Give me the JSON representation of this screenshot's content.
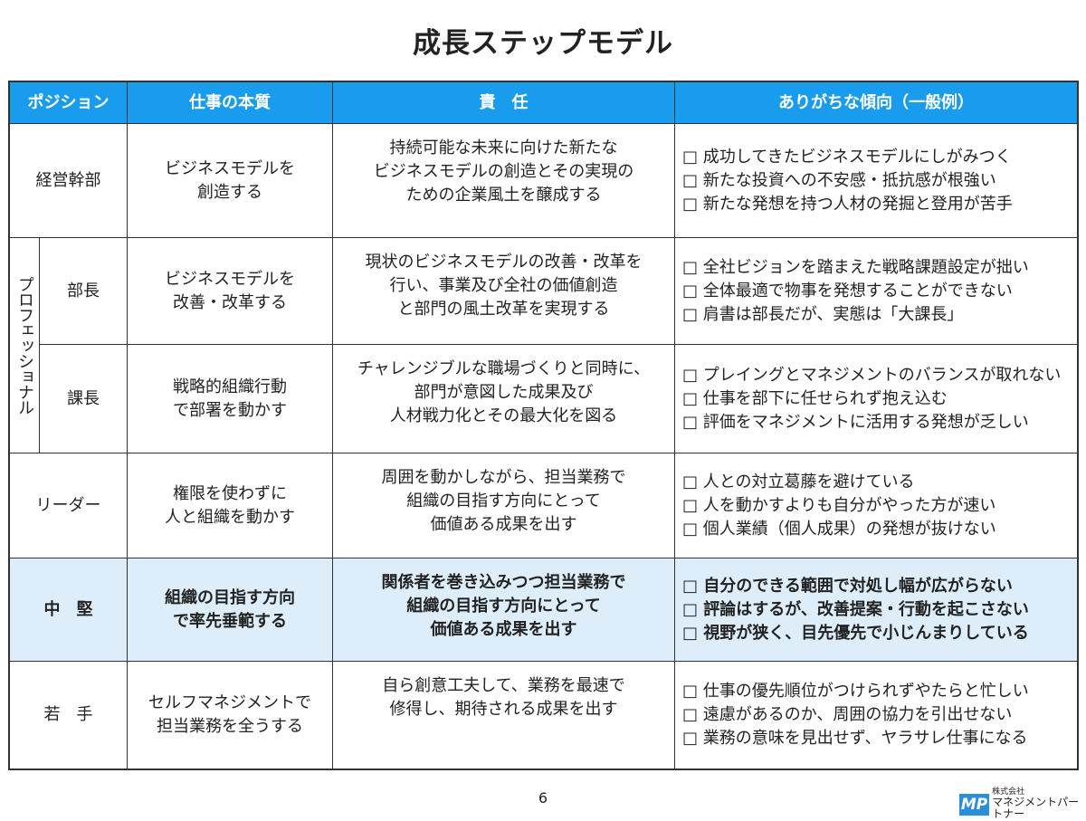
{
  "title": "成長ステップモデル",
  "headers": [
    "ポジション",
    "仕事の本質",
    "責　任",
    "ありがちな傾向（一般例）"
  ],
  "professional_label": "プロフェッショナル",
  "rows": [
    {
      "position": "経営幹部",
      "essence": [
        "ビジネスモデルを",
        "創造する"
      ],
      "responsibility": [
        "持続可能な未来に向けた新たな",
        "ビジネスモデルの創造とその実現の",
        "ための企業風土を醸成する"
      ],
      "tendencies": [
        "□ 成功してきたビジネスモデルにしがみつく",
        "□ 新たな投資への不安感・抵抗感が根強い",
        "□ 新たな発想を持つ人材の発掘と登用が苦手"
      ]
    },
    {
      "position": "部長",
      "essence": [
        "ビジネスモデルを",
        "改善・改革する"
      ],
      "responsibility": [
        "現状のビジネスモデルの改善・改革を",
        "行い、事業及び全社の価値創造",
        "と部門の風土改革を実現する"
      ],
      "tendencies": [
        "□ 全社ビジョンを踏まえた戦略課題設定が拙い",
        "□ 全体最適で物事を発想することができない",
        "□ 肩書は部長だが、実態は「大課長」"
      ]
    },
    {
      "position": "課長",
      "essence": [
        "戦略的組織行動",
        "で部署を動かす"
      ],
      "responsibility": [
        "チャレンジブルな職場づくりと同時に、",
        "部門が意図した成果及び",
        "人材戦力化とその最大化を図る"
      ],
      "tendencies": [
        "□ プレイングとマネジメントのバランスが取れない",
        "□ 仕事を部下に任せられず抱え込む",
        "□ 評価をマネジメントに活用する発想が乏しい"
      ]
    },
    {
      "position": "リーダー",
      "essence": [
        "権限を使わずに",
        "人と組織を動かす"
      ],
      "responsibility": [
        "周囲を動かしながら、担当業務で",
        "組織の目指す方向にとって",
        "価値ある成果を出す"
      ],
      "tendencies": [
        "□ 人との対立葛藤を避けている",
        "□ 人を動かすよりも自分がやった方が速い",
        "□ 個人業績（個人成果）の発想が抜けない"
      ]
    },
    {
      "position": "中　堅",
      "essence": [
        "組織の目指す方向",
        "で率先垂範する"
      ],
      "responsibility": [
        "関係者を巻き込みつつ担当業務で",
        "組織の目指す方向にとって",
        "価値ある成果を出す"
      ],
      "tendencies": [
        "□ 自分のできる範囲で対処し幅が広がらない",
        "□ 評論はするが、改善提案・行動を起こさない",
        "□ 視野が狭く、目先優先で小じんまりしている"
      ]
    },
    {
      "position": "若　手",
      "essence": [
        "セルフマネジメントで",
        "担当業務を全うする"
      ],
      "responsibility": [
        "自ら創意工夫して、業務を最速で",
        "修得し、期待される成果を出す"
      ],
      "tendencies": [
        "□ 仕事の優先順位がつけられずやたらと忙しい",
        "□ 遠慮があるのか、周囲の協力を引出せない",
        "□ 業務の意味を見出せず、ヤラサレ仕事になる"
      ]
    }
  ],
  "page_number": "6",
  "logo": {
    "mark": "MP",
    "company_type": "株式会社",
    "company_name": "マネジメントパートナー"
  },
  "colors": {
    "header": "#1a9cee",
    "highlight": "#ddeefa"
  }
}
